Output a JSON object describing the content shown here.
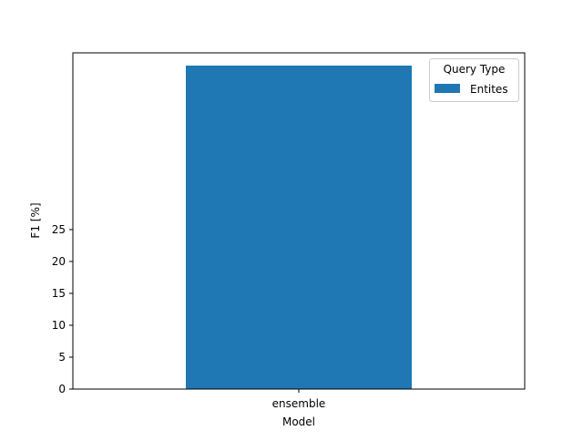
{
  "chart_data": {
    "type": "bar",
    "title": "",
    "xlabel": "Model",
    "ylabel": "F1 [%]",
    "categories": [
      "ensemble"
    ],
    "series": [
      {
        "name": "Entites",
        "values": [
          50.7
        ],
        "color": "#1f77b4"
      }
    ],
    "ylim": [
      0,
      52.7
    ],
    "yticks": [
      0,
      5,
      10,
      15,
      20,
      25
    ],
    "grid": false,
    "legend": {
      "title": "Query Type",
      "placement": "top-right"
    }
  }
}
